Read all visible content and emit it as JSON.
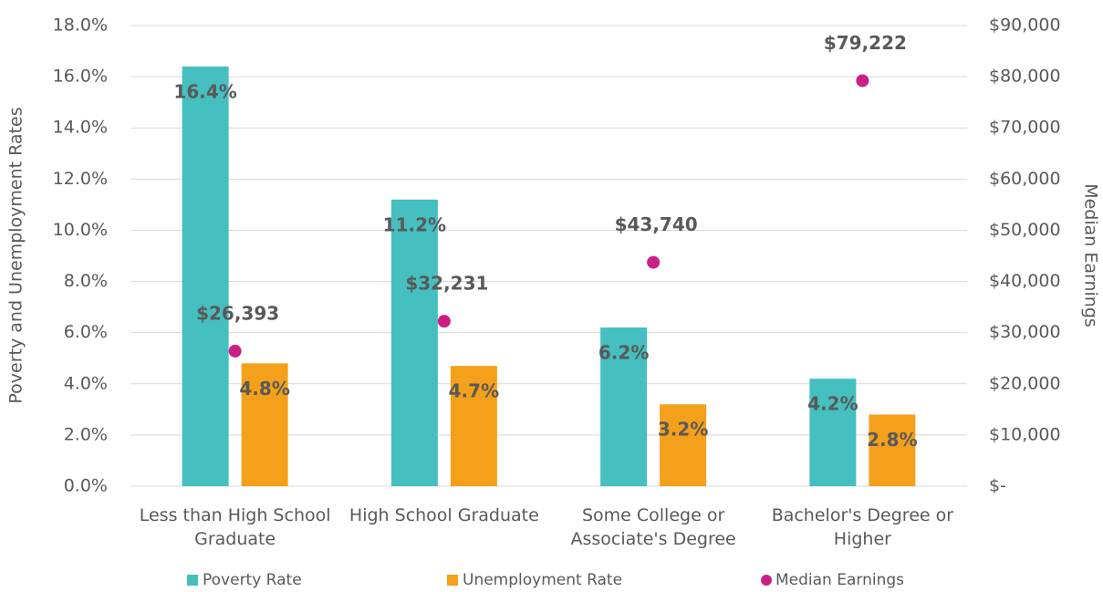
{
  "chart_data": {
    "type": "bar",
    "categories": [
      "Less than High School Graduate",
      "High School Graduate",
      "Some College or Associate's Degree",
      "Bachelor's Degree or Higher"
    ],
    "series": [
      {
        "name": "Poverty Rate",
        "color": "#45BFBF",
        "values": [
          16.4,
          11.2,
          6.2,
          4.2
        ],
        "value_labels": [
          "16.4%",
          "11.2%",
          "6.2%",
          "4.2%"
        ]
      },
      {
        "name": "Unemployment Rate",
        "color": "#F5A01A",
        "values": [
          4.8,
          4.7,
          3.2,
          2.8
        ],
        "value_labels": [
          "4.8%",
          "4.7%",
          "3.2%",
          "2.8%"
        ]
      },
      {
        "name": "Median Earnings",
        "color": "#CC1F86",
        "type": "scatter",
        "axis": "y2",
        "values": [
          26393,
          32231,
          43740,
          79222
        ],
        "value_labels": [
          "$26,393",
          "$32,231",
          "$43,740",
          "$79,222"
        ]
      }
    ],
    "ylabel": "Poverty and Unemployment Rates",
    "y2label": "Median Earnings",
    "ylim": [
      0,
      18
    ],
    "yticks": [
      {
        "value": 0,
        "label": "0.0%"
      },
      {
        "value": 2,
        "label": "2.0%"
      },
      {
        "value": 4,
        "label": "4.0%"
      },
      {
        "value": 6,
        "label": "6.0%"
      },
      {
        "value": 8,
        "label": "8.0%"
      },
      {
        "value": 10,
        "label": "10.0%"
      },
      {
        "value": 12,
        "label": "12.0%"
      },
      {
        "value": 14,
        "label": "14.0%"
      },
      {
        "value": 16,
        "label": "16.0%"
      },
      {
        "value": 18,
        "label": "18.0%"
      }
    ],
    "y2lim": [
      0,
      90000
    ],
    "y2ticks": [
      {
        "value": 0,
        "label": "$-"
      },
      {
        "value": 10000,
        "label": "$10,000"
      },
      {
        "value": 20000,
        "label": "$20,000"
      },
      {
        "value": 30000,
        "label": "$30,000"
      },
      {
        "value": 40000,
        "label": "$40,000"
      },
      {
        "value": 50000,
        "label": "$50,000"
      },
      {
        "value": 60000,
        "label": "$60,000"
      },
      {
        "value": 70000,
        "label": "$70,000"
      },
      {
        "value": 80000,
        "label": "$80,000"
      },
      {
        "value": 90000,
        "label": "$90,000"
      }
    ],
    "grid": true,
    "legend": "bottom"
  }
}
